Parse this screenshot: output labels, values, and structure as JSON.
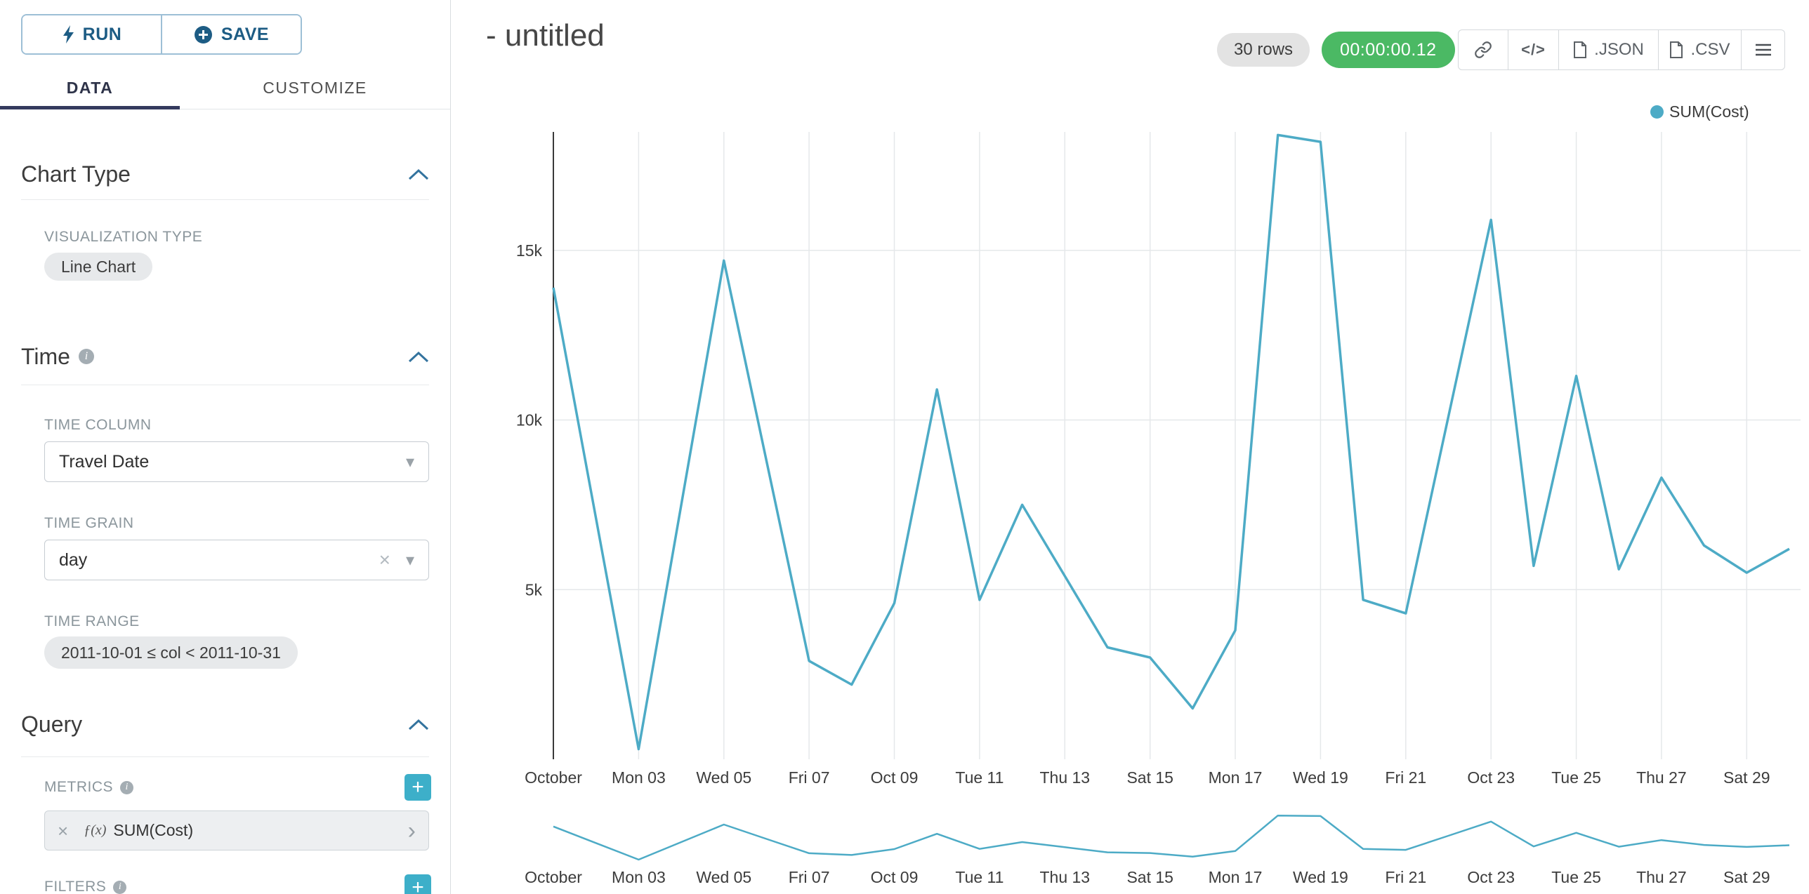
{
  "toolbar": {
    "run": "RUN",
    "save": "SAVE"
  },
  "tabs": {
    "data": "DATA",
    "customize": "CUSTOMIZE"
  },
  "icons": {
    "caret": "▾",
    "clear": "×",
    "add": "+",
    "expand": "›",
    "info": "i"
  },
  "panels": {
    "chart_type": {
      "title": "Chart Type",
      "viz_label": "VISUALIZATION TYPE",
      "viz_value": "Line Chart"
    },
    "time": {
      "title": "Time",
      "column_label": "TIME COLUMN",
      "column_value": "Travel Date",
      "grain_label": "TIME GRAIN",
      "grain_value": "day",
      "range_label": "TIME RANGE",
      "range_value": "2011-10-01 ≤ col < 2011-10-31"
    },
    "query": {
      "title": "Query",
      "metrics_label": "METRICS",
      "metric_fx": "ƒ(x)",
      "metric_name": "SUM(Cost)",
      "filters_label": "FILTERS"
    }
  },
  "header": {
    "title": "- untitled",
    "rows": "30 rows",
    "elapsed": "00:00:00.12",
    "code": "</>",
    "json": ".JSON",
    "csv": ".CSV"
  },
  "chart_data": {
    "type": "line",
    "title": "- untitled",
    "x_month": "October 2011",
    "num_points": 30,
    "series": [
      {
        "name": "SUM(Cost)",
        "color": "#4dabc6",
        "values": [
          13900,
          7100,
          300,
          7500,
          14700,
          8800,
          2900,
          2200,
          4600,
          10900,
          4700,
          7500,
          5400,
          3300,
          3000,
          1500,
          3800,
          18400,
          18200,
          4700,
          4300,
          10100,
          15900,
          5700,
          11300,
          5600,
          8300,
          6300,
          5500,
          6200
        ]
      }
    ],
    "x_tick_labels": [
      "October",
      "Mon 03",
      "Wed 05",
      "Fri 07",
      "Oct 09",
      "Tue 11",
      "Thu 13",
      "Sat 15",
      "Mon 17",
      "Wed 19",
      "Fri 21",
      "Oct 23",
      "Tue 25",
      "Thu 27",
      "Sat 29"
    ],
    "x_tick_indices": [
      0,
      2,
      4,
      6,
      8,
      10,
      12,
      14,
      16,
      18,
      20,
      22,
      24,
      26,
      28
    ],
    "y_tick_labels": [
      "5k",
      "10k",
      "15k"
    ],
    "y_tick_values": [
      5000,
      10000,
      15000
    ],
    "ylim": [
      0,
      18450
    ],
    "grid": true,
    "legend_position": "top-right"
  }
}
